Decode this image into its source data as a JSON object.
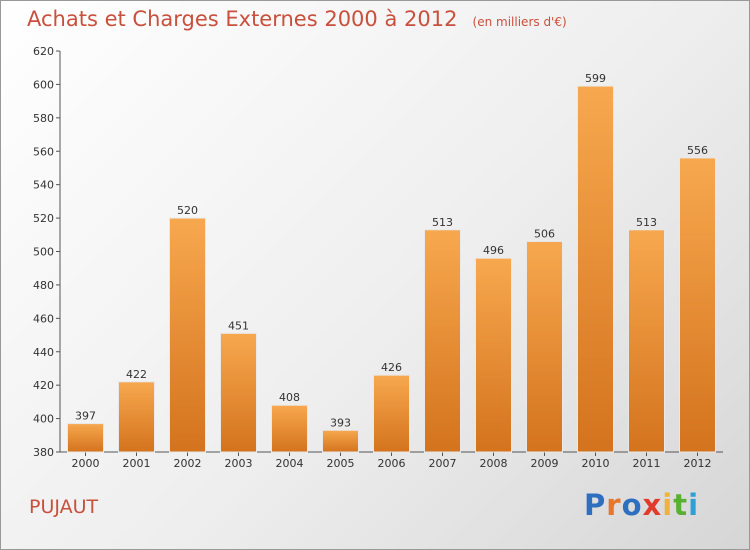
{
  "header": {
    "title": "Achats et Charges Externes 2000 à 2012",
    "unit": "(en milliers d'€)"
  },
  "footer": {
    "place": "PUJAUT",
    "logo": "Proxiti"
  },
  "colors": {
    "bar_top": "#f7a84e",
    "bar_bottom": "#d4731e",
    "title": "#c8503c"
  },
  "chart_data": {
    "type": "bar",
    "categories": [
      "2000",
      "2001",
      "2002",
      "2003",
      "2004",
      "2005",
      "2006",
      "2007",
      "2008",
      "2009",
      "2010",
      "2011",
      "2012"
    ],
    "values": [
      397,
      422,
      520,
      451,
      408,
      393,
      426,
      513,
      496,
      506,
      599,
      513,
      556
    ],
    "ylim": [
      380,
      620
    ],
    "yticks": [
      380,
      400,
      420,
      440,
      460,
      480,
      500,
      520,
      540,
      560,
      580,
      600,
      620
    ],
    "grid": false,
    "legend": "none"
  }
}
